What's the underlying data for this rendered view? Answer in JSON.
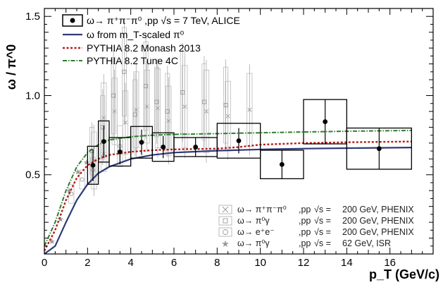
{
  "chart_data": {
    "type": "scatter",
    "xlabel": "p_T (GeV/c)",
    "ylabel": "ω / π^0",
    "xlim": [
      0,
      18
    ],
    "ylim": [
      0,
      1.55
    ],
    "x_ticks": [
      0,
      2,
      4,
      6,
      8,
      10,
      12,
      14,
      16
    ],
    "y_ticks": [
      "0.5",
      "1.0",
      "1.5"
    ],
    "legend_top": {
      "alice": "ω→ π⁺π⁻π⁰ ,pp √s = 7 TeV, ALICE",
      "scaled": "ω from m_T-scaled π⁰",
      "monash": "PYTHIA 8.2 Monash 2013",
      "tune4c": "PYTHIA 8.2 Tune 4C"
    },
    "legend_bottom": [
      {
        "decay": "ω→ π⁺π⁻π⁰",
        "pp": ",pp",
        "rts": "√s =",
        "energy": "200 GeV, PHENIX",
        "marker": "x"
      },
      {
        "decay": "ω→ π⁰γ",
        "pp": ",pp",
        "rts": "√s =",
        "energy": "200 GeV, PHENIX",
        "marker": "square"
      },
      {
        "decay": "ω→ e⁺e⁻",
        "pp": ",pp",
        "rts": "√s =",
        "energy": "200 GeV, PHENIX",
        "marker": "circle"
      },
      {
        "decay": "ω→ π⁰γ",
        "pp": ",pp",
        "rts": "√s =",
        "energy": "62 GeV, ISR",
        "marker": "star"
      }
    ],
    "alice": [
      {
        "x": 2.25,
        "y": 0.56,
        "ey": 0.1,
        "xl": 2.0,
        "xh": 2.5,
        "sy": 0.12
      },
      {
        "x": 2.75,
        "y": 0.71,
        "ey": 0.1,
        "xl": 2.5,
        "xh": 3.0,
        "sy": 0.13
      },
      {
        "x": 3.5,
        "y": 0.645,
        "ey": 0.08,
        "xl": 3.0,
        "xh": 4.0,
        "sy": 0.09
      },
      {
        "x": 4.5,
        "y": 0.705,
        "ey": 0.08,
        "xl": 4.0,
        "xh": 5.0,
        "sy": 0.1
      },
      {
        "x": 5.5,
        "y": 0.675,
        "ey": 0.07,
        "xl": 5.0,
        "xh": 6.0,
        "sy": 0.09
      },
      {
        "x": 7.0,
        "y": 0.675,
        "ey": 0.06,
        "xl": 6.0,
        "xh": 8.0,
        "sy": 0.06
      },
      {
        "x": 9.0,
        "y": 0.715,
        "ey": 0.08,
        "xl": 8.0,
        "xh": 10.0,
        "sy": 0.11
      },
      {
        "x": 11.0,
        "y": 0.565,
        "ey": 0.09,
        "xl": 10.0,
        "xh": 12.0,
        "sy": 0.09
      },
      {
        "x": 13.0,
        "y": 0.835,
        "ey": 0.14,
        "xl": 12.0,
        "xh": 14.0,
        "sy": 0.14
      },
      {
        "x": 15.5,
        "y": 0.665,
        "ey": 0.13,
        "xl": 14.0,
        "xh": 17.0,
        "sy": 0.13
      }
    ],
    "mt_scaled": [
      [
        0,
        0
      ],
      [
        0.5,
        0.05
      ],
      [
        1.0,
        0.2
      ],
      [
        1.5,
        0.34
      ],
      [
        2.0,
        0.44
      ],
      [
        2.5,
        0.51
      ],
      [
        3.0,
        0.55
      ],
      [
        4.0,
        0.6
      ],
      [
        5.0,
        0.625
      ],
      [
        6.0,
        0.64
      ],
      [
        8.0,
        0.652
      ],
      [
        10.0,
        0.66
      ],
      [
        12.0,
        0.665
      ],
      [
        14.0,
        0.668
      ],
      [
        17.0,
        0.672
      ]
    ],
    "monash": [
      [
        0,
        0.02
      ],
      [
        0.5,
        0.15
      ],
      [
        1.0,
        0.34
      ],
      [
        1.5,
        0.48
      ],
      [
        2.0,
        0.56
      ],
      [
        2.5,
        0.6
      ],
      [
        3.0,
        0.625
      ],
      [
        4.0,
        0.645
      ],
      [
        5.0,
        0.655
      ],
      [
        6.0,
        0.66
      ],
      [
        8.0,
        0.665
      ],
      [
        9.0,
        0.675
      ],
      [
        10.0,
        0.69
      ],
      [
        12.0,
        0.7
      ],
      [
        14.0,
        0.705
      ],
      [
        17.0,
        0.71
      ]
    ],
    "tune4c": [
      [
        0,
        0.05
      ],
      [
        0.5,
        0.2
      ],
      [
        1.0,
        0.4
      ],
      [
        1.5,
        0.55
      ],
      [
        2.0,
        0.64
      ],
      [
        2.5,
        0.69
      ],
      [
        3.0,
        0.72
      ],
      [
        4.0,
        0.74
      ],
      [
        5.0,
        0.75
      ],
      [
        6.0,
        0.755
      ],
      [
        8.0,
        0.76
      ],
      [
        10.0,
        0.765
      ],
      [
        12.0,
        0.77
      ],
      [
        14.0,
        0.775
      ],
      [
        17.0,
        0.78
      ]
    ],
    "phenix_x": [
      {
        "x": 2.3,
        "y": 0.59,
        "e": 0.18
      },
      {
        "x": 2.75,
        "y": 0.86,
        "e": 0.22
      },
      {
        "x": 3.25,
        "y": 0.9,
        "e": 0.21
      },
      {
        "x": 3.75,
        "y": 0.83,
        "e": 0.2
      },
      {
        "x": 4.25,
        "y": 0.91,
        "e": 0.24
      },
      {
        "x": 4.75,
        "y": 0.93,
        "e": 0.23
      },
      {
        "x": 5.25,
        "y": 0.92,
        "e": 0.25
      },
      {
        "x": 5.75,
        "y": 0.84,
        "e": 0.22
      },
      {
        "x": 6.5,
        "y": 0.93,
        "e": 0.26
      },
      {
        "x": 7.5,
        "y": 0.9,
        "e": 0.26
      },
      {
        "x": 8.5,
        "y": 0.87,
        "e": 0.22
      },
      {
        "x": 9.5,
        "y": 0.91,
        "e": 0.23
      }
    ],
    "phenix_g": [
      {
        "x": 2.2,
        "y": 0.65,
        "e": 0.15
      },
      {
        "x": 2.7,
        "y": 0.8,
        "e": 0.2
      },
      {
        "x": 3.2,
        "y": 1.0,
        "e": 0.24
      },
      {
        "x": 3.7,
        "y": 1.15,
        "e": 0.28
      },
      {
        "x": 4.2,
        "y": 0.88,
        "e": 0.22
      },
      {
        "x": 4.7,
        "y": 1.06,
        "e": 0.28
      },
      {
        "x": 5.2,
        "y": 0.96,
        "e": 0.22
      },
      {
        "x": 5.7,
        "y": 0.9,
        "e": 0.24
      },
      {
        "x": 6.4,
        "y": 1.02,
        "e": 0.26
      },
      {
        "x": 7.4,
        "y": 0.96,
        "e": 0.24
      },
      {
        "x": 8.4,
        "y": 0.94,
        "e": 0.24
      }
    ],
    "phenix_ee": [
      {
        "x": 1.25,
        "y": 0.38,
        "e": 0.06
      },
      {
        "x": 1.75,
        "y": 0.47,
        "e": 0.06
      },
      {
        "x": 2.25,
        "y": 0.53,
        "e": 0.08
      },
      {
        "x": 2.75,
        "y": 0.62,
        "e": 0.1
      },
      {
        "x": 3.5,
        "y": 0.68,
        "e": 0.13
      }
    ],
    "isr": [
      {
        "x": 0.35,
        "y": 0.08
      },
      {
        "x": 0.75,
        "y": 0.22
      },
      {
        "x": 1.15,
        "y": 0.4
      },
      {
        "x": 1.55,
        "y": 0.52
      },
      {
        "x": 1.95,
        "y": 0.58
      }
    ]
  }
}
